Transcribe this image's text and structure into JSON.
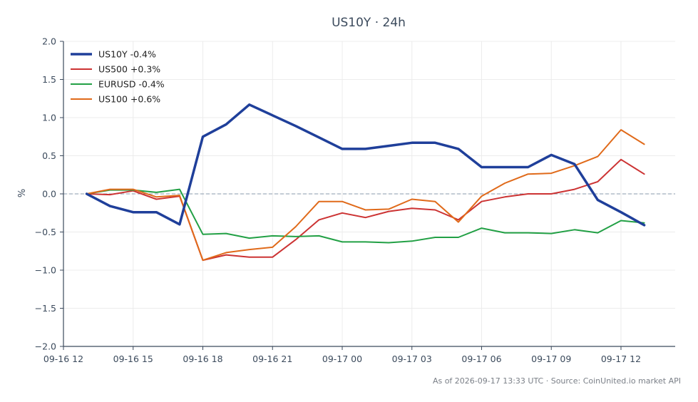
{
  "chart_data": {
    "type": "line",
    "title": "US10Y · 24h",
    "xlabel": "",
    "ylabel": "%",
    "ylim": [
      -2.0,
      2.0
    ],
    "yticks": [
      2.0,
      1.5,
      1.0,
      0.5,
      0.0,
      -0.5,
      -1.0,
      -1.5,
      -2.0
    ],
    "ytick_labels": [
      "2.0",
      "1.5",
      "1.0",
      "0.5",
      "0.0",
      "−0.5",
      "−1.0",
      "−1.5",
      "−2.0"
    ],
    "xlim": [
      "09-16 12:00",
      "09-17 14:20"
    ],
    "xtick_labels": [
      "09-16 12",
      "09-16 15",
      "09-16 18",
      "09-16 21",
      "09-17 00",
      "09-17 03",
      "09-17 06",
      "09-17 09",
      "09-17 12"
    ],
    "x": [
      "09-16 13:00",
      "09-16 14:00",
      "09-16 15:00",
      "09-16 16:00",
      "09-16 17:00",
      "09-16 18:00",
      "09-16 19:00",
      "09-16 20:00",
      "09-16 21:00",
      "09-16 22:00",
      "09-16 23:00",
      "09-17 00:00",
      "09-17 01:00",
      "09-17 02:00",
      "09-17 03:00",
      "09-17 04:00",
      "09-17 05:00",
      "09-17 06:00",
      "09-17 07:00",
      "09-17 08:00",
      "09-17 09:00",
      "09-17 10:00",
      "09-17 11:00",
      "09-17 12:00",
      "09-17 13:00"
    ],
    "grid": true,
    "legend_position": "top-left",
    "reference_line": 0.0,
    "series": [
      {
        "name": "US10Y -0.4%",
        "color": "#1f3f9a",
        "width": 3.5,
        "values": [
          0.0,
          -0.16,
          -0.24,
          -0.24,
          -0.4,
          0.75,
          0.91,
          1.17,
          1.03,
          0.89,
          0.74,
          0.59,
          0.59,
          0.63,
          0.67,
          0.67,
          0.59,
          0.35,
          0.35,
          0.35,
          0.51,
          0.39,
          -0.08,
          -0.24,
          -0.41
        ]
      },
      {
        "name": "US500 +0.3%",
        "color": "#cc3333",
        "width": 2,
        "values": [
          0.0,
          -0.01,
          0.04,
          -0.07,
          -0.03,
          -0.87,
          -0.8,
          -0.83,
          -0.83,
          -0.6,
          -0.34,
          -0.25,
          -0.31,
          -0.23,
          -0.19,
          -0.21,
          -0.34,
          -0.1,
          -0.04,
          0.0,
          0.0,
          0.06,
          0.16,
          0.45,
          0.26
        ]
      },
      {
        "name": "EURUSD -0.4%",
        "color": "#22a045",
        "width": 2,
        "values": [
          0.0,
          0.05,
          0.05,
          0.02,
          0.06,
          -0.53,
          -0.52,
          -0.58,
          -0.55,
          -0.56,
          -0.55,
          -0.63,
          -0.63,
          -0.64,
          -0.62,
          -0.57,
          -0.57,
          -0.45,
          -0.51,
          -0.51,
          -0.52,
          -0.47,
          -0.51,
          -0.35,
          -0.38
        ]
      },
      {
        "name": "US100 +0.6%",
        "color": "#e06a1a",
        "width": 2,
        "values": [
          0.0,
          0.06,
          0.06,
          -0.04,
          -0.02,
          -0.87,
          -0.77,
          -0.73,
          -0.7,
          -0.43,
          -0.1,
          -0.1,
          -0.21,
          -0.2,
          -0.07,
          -0.1,
          -0.37,
          -0.03,
          0.14,
          0.26,
          0.27,
          0.37,
          0.49,
          0.84,
          0.65
        ]
      }
    ]
  },
  "footer": {
    "note": "As of 2026-09-17 13:33 UTC · Source: CoinUnited.io market API"
  }
}
